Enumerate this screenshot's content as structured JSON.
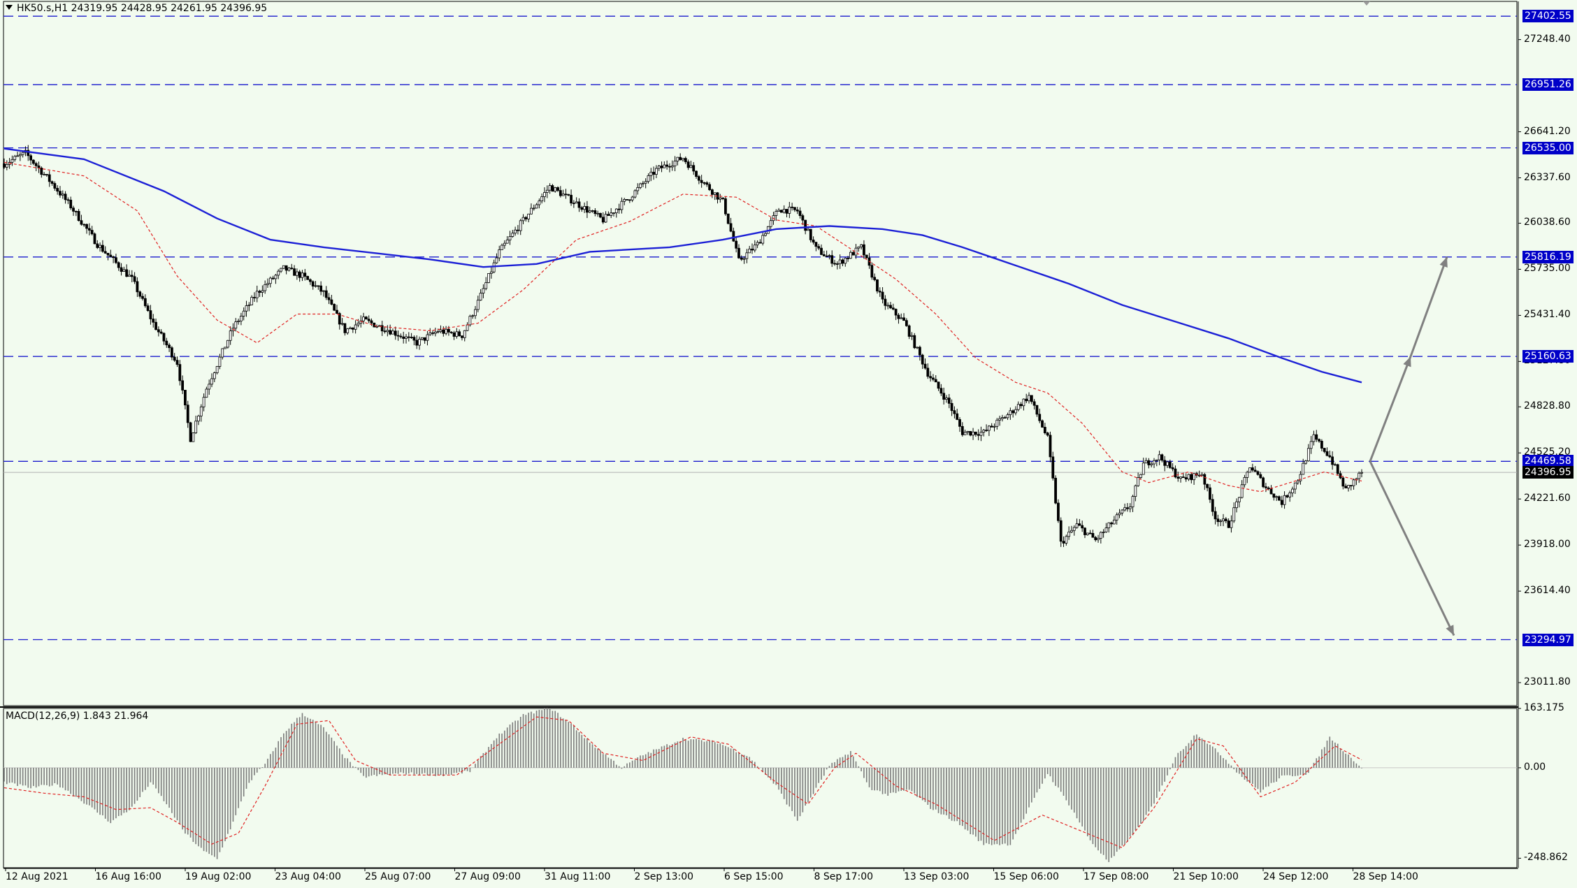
{
  "chart_data": [
    {
      "type": "candlestick",
      "symbol_info": "HK50.s,H1  24319.95 24428.95 24261.95 24396.95",
      "timeframe": "H1",
      "ohlc_last": {
        "open": 24319.95,
        "high": 24428.95,
        "low": 24261.95,
        "close": 24396.95
      },
      "ylim": [
        22860,
        27500
      ],
      "price_ticks": [
        "27248.40",
        "26641.20",
        "26337.60",
        "26038.60",
        "25735.00",
        "25431.40",
        "25127.80",
        "24828.80",
        "24525.20",
        "24221.60",
        "23918.00",
        "23614.40",
        "23011.80"
      ],
      "levels": [
        27402.55,
        26951.26,
        26535.0,
        25816.19,
        25160.63,
        24469.58,
        23294.97
      ],
      "level_labels": [
        "27402.55",
        "26951.26",
        "26535.00",
        "25816.19",
        "25160.63",
        "24469.58",
        "23294.97"
      ],
      "current_price_label": "24396.95",
      "x_labels": [
        "12 Aug 2021",
        "16 Aug 16:00",
        "19 Aug 02:00",
        "23 Aug 04:00",
        "25 Aug 07:00",
        "27 Aug 09:00",
        "31 Aug 11:00",
        "2 Sep 13:00",
        "6 Sep 15:00",
        "8 Sep 17:00",
        "13 Sep 03:00",
        "15 Sep 06:00",
        "17 Sep 08:00",
        "21 Sep 10:00",
        "24 Sep 12:00",
        "28 Sep 14:00"
      ],
      "price_path": [
        [
          0,
          26430
        ],
        [
          8,
          26500
        ],
        [
          18,
          26300
        ],
        [
          25,
          26150
        ],
        [
          35,
          25900
        ],
        [
          48,
          25670
        ],
        [
          56,
          25380
        ],
        [
          65,
          25120
        ],
        [
          70,
          24620
        ],
        [
          76,
          24950
        ],
        [
          86,
          25350
        ],
        [
          95,
          25580
        ],
        [
          105,
          25740
        ],
        [
          112,
          25690
        ],
        [
          120,
          25580
        ],
        [
          128,
          25330
        ],
        [
          135,
          25400
        ],
        [
          145,
          25330
        ],
        [
          155,
          25250
        ],
        [
          163,
          25330
        ],
        [
          172,
          25300
        ],
        [
          178,
          25520
        ],
        [
          186,
          25850
        ],
        [
          196,
          26080
        ],
        [
          205,
          26280
        ],
        [
          215,
          26170
        ],
        [
          225,
          26060
        ],
        [
          235,
          26210
        ],
        [
          245,
          26390
        ],
        [
          255,
          26470
        ],
        [
          262,
          26320
        ],
        [
          270,
          26180
        ],
        [
          276,
          25790
        ],
        [
          283,
          25900
        ],
        [
          291,
          26130
        ],
        [
          298,
          26120
        ],
        [
          305,
          25870
        ],
        [
          313,
          25770
        ],
        [
          322,
          25880
        ],
        [
          330,
          25520
        ],
        [
          338,
          25390
        ],
        [
          347,
          25050
        ],
        [
          355,
          24850
        ],
        [
          360,
          24660
        ],
        [
          368,
          24660
        ],
        [
          378,
          24790
        ],
        [
          385,
          24900
        ],
        [
          392,
          24620
        ],
        [
          397,
          23930
        ],
        [
          403,
          24050
        ],
        [
          410,
          23950
        ],
        [
          418,
          24100
        ],
        [
          423,
          24180
        ],
        [
          428,
          24450
        ],
        [
          434,
          24500
        ],
        [
          442,
          24350
        ],
        [
          450,
          24390
        ],
        [
          455,
          24100
        ],
        [
          460,
          24050
        ],
        [
          468,
          24440
        ],
        [
          474,
          24300
        ],
        [
          480,
          24200
        ],
        [
          486,
          24350
        ],
        [
          492,
          24630
        ],
        [
          498,
          24500
        ],
        [
          504,
          24280
        ],
        [
          510,
          24396.95
        ]
      ],
      "ema_red": [
        [
          0,
          26440
        ],
        [
          30,
          26350
        ],
        [
          50,
          26120
        ],
        [
          65,
          25690
        ],
        [
          80,
          25400
        ],
        [
          95,
          25250
        ],
        [
          110,
          25440
        ],
        [
          125,
          25440
        ],
        [
          140,
          25360
        ],
        [
          160,
          25330
        ],
        [
          178,
          25380
        ],
        [
          195,
          25600
        ],
        [
          215,
          25930
        ],
        [
          235,
          26050
        ],
        [
          255,
          26230
        ],
        [
          275,
          26210
        ],
        [
          290,
          26060
        ],
        [
          305,
          26020
        ],
        [
          318,
          25870
        ],
        [
          335,
          25670
        ],
        [
          350,
          25440
        ],
        [
          365,
          25150
        ],
        [
          380,
          24990
        ],
        [
          392,
          24920
        ],
        [
          405,
          24720
        ],
        [
          420,
          24400
        ],
        [
          430,
          24330
        ],
        [
          445,
          24400
        ],
        [
          460,
          24310
        ],
        [
          472,
          24270
        ],
        [
          485,
          24340
        ],
        [
          496,
          24400
        ],
        [
          505,
          24360
        ],
        [
          510,
          24340
        ]
      ],
      "ma_blue": [
        [
          0,
          26530
        ],
        [
          30,
          26460
        ],
        [
          60,
          26250
        ],
        [
          80,
          26070
        ],
        [
          100,
          25930
        ],
        [
          120,
          25880
        ],
        [
          140,
          25840
        ],
        [
          160,
          25800
        ],
        [
          180,
          25750
        ],
        [
          200,
          25770
        ],
        [
          220,
          25850
        ],
        [
          250,
          25880
        ],
        [
          270,
          25930
        ],
        [
          290,
          26000
        ],
        [
          310,
          26020
        ],
        [
          330,
          26000
        ],
        [
          345,
          25960
        ],
        [
          360,
          25880
        ],
        [
          380,
          25760
        ],
        [
          400,
          25640
        ],
        [
          420,
          25500
        ],
        [
          440,
          25390
        ],
        [
          460,
          25280
        ],
        [
          480,
          25150
        ],
        [
          495,
          25060
        ],
        [
          510,
          24990
        ]
      ],
      "projection_arrows": [
        {
          "from": [
            24469.58
          ],
          "to": [
            25816.19
          ],
          "direction": "up"
        },
        {
          "from": [
            24469.58
          ],
          "to": [
            23294.97
          ],
          "direction": "down"
        }
      ]
    },
    {
      "type": "bar",
      "indicator": "MACD",
      "label": "MACD(12,26,9) 1.843 21.964",
      "params": [
        12,
        26,
        9
      ],
      "values": {
        "macd": 1.843,
        "signal": 21.964
      },
      "ylim": [
        -275,
        163.175
      ],
      "y_ticks": [
        "163.175",
        "0.00",
        "-248.862"
      ],
      "histogram_path": [
        [
          0,
          -40
        ],
        [
          10,
          -55
        ],
        [
          20,
          -45
        ],
        [
          30,
          -95
        ],
        [
          40,
          -150
        ],
        [
          48,
          -110
        ],
        [
          55,
          -40
        ],
        [
          60,
          -90
        ],
        [
          68,
          -180
        ],
        [
          75,
          -230
        ],
        [
          80,
          -250
        ],
        [
          86,
          -150
        ],
        [
          92,
          -40
        ],
        [
          98,
          10
        ],
        [
          105,
          95
        ],
        [
          112,
          150
        ],
        [
          120,
          110
        ],
        [
          128,
          30
        ],
        [
          135,
          -25
        ],
        [
          150,
          -15
        ],
        [
          165,
          -20
        ],
        [
          175,
          -10
        ],
        [
          185,
          85
        ],
        [
          195,
          145
        ],
        [
          205,
          165
        ],
        [
          213,
          120
        ],
        [
          220,
          70
        ],
        [
          232,
          0
        ],
        [
          240,
          35
        ],
        [
          255,
          80
        ],
        [
          268,
          70
        ],
        [
          280,
          30
        ],
        [
          290,
          -50
        ],
        [
          298,
          -145
        ],
        [
          304,
          -70
        ],
        [
          310,
          5
        ],
        [
          318,
          45
        ],
        [
          325,
          -55
        ],
        [
          332,
          -75
        ],
        [
          340,
          -60
        ],
        [
          348,
          -110
        ],
        [
          358,
          -150
        ],
        [
          368,
          -210
        ],
        [
          378,
          -210
        ],
        [
          392,
          -15
        ],
        [
          400,
          -100
        ],
        [
          408,
          -200
        ],
        [
          415,
          -260
        ],
        [
          425,
          -175
        ],
        [
          432,
          -100
        ],
        [
          440,
          30
        ],
        [
          448,
          95
        ],
        [
          458,
          30
        ],
        [
          465,
          -25
        ],
        [
          472,
          -65
        ],
        [
          480,
          -25
        ],
        [
          490,
          -15
        ],
        [
          498,
          85
        ],
        [
          505,
          35
        ],
        [
          510,
          0
        ]
      ],
      "signal_path": [
        [
          0,
          -55
        ],
        [
          15,
          -70
        ],
        [
          30,
          -80
        ],
        [
          42,
          -115
        ],
        [
          55,
          -110
        ],
        [
          65,
          -150
        ],
        [
          78,
          -210
        ],
        [
          88,
          -180
        ],
        [
          98,
          -50
        ],
        [
          110,
          120
        ],
        [
          122,
          130
        ],
        [
          132,
          20
        ],
        [
          145,
          -20
        ],
        [
          170,
          -20
        ],
        [
          185,
          60
        ],
        [
          200,
          140
        ],
        [
          212,
          130
        ],
        [
          225,
          40
        ],
        [
          240,
          20
        ],
        [
          258,
          85
        ],
        [
          272,
          65
        ],
        [
          290,
          -40
        ],
        [
          302,
          -100
        ],
        [
          312,
          0
        ],
        [
          320,
          40
        ],
        [
          335,
          -50
        ],
        [
          350,
          -100
        ],
        [
          372,
          -200
        ],
        [
          390,
          -130
        ],
        [
          410,
          -190
        ],
        [
          420,
          -220
        ],
        [
          432,
          -110
        ],
        [
          448,
          80
        ],
        [
          458,
          60
        ],
        [
          472,
          -80
        ],
        [
          485,
          -40
        ],
        [
          500,
          60
        ],
        [
          510,
          22
        ]
      ]
    }
  ]
}
